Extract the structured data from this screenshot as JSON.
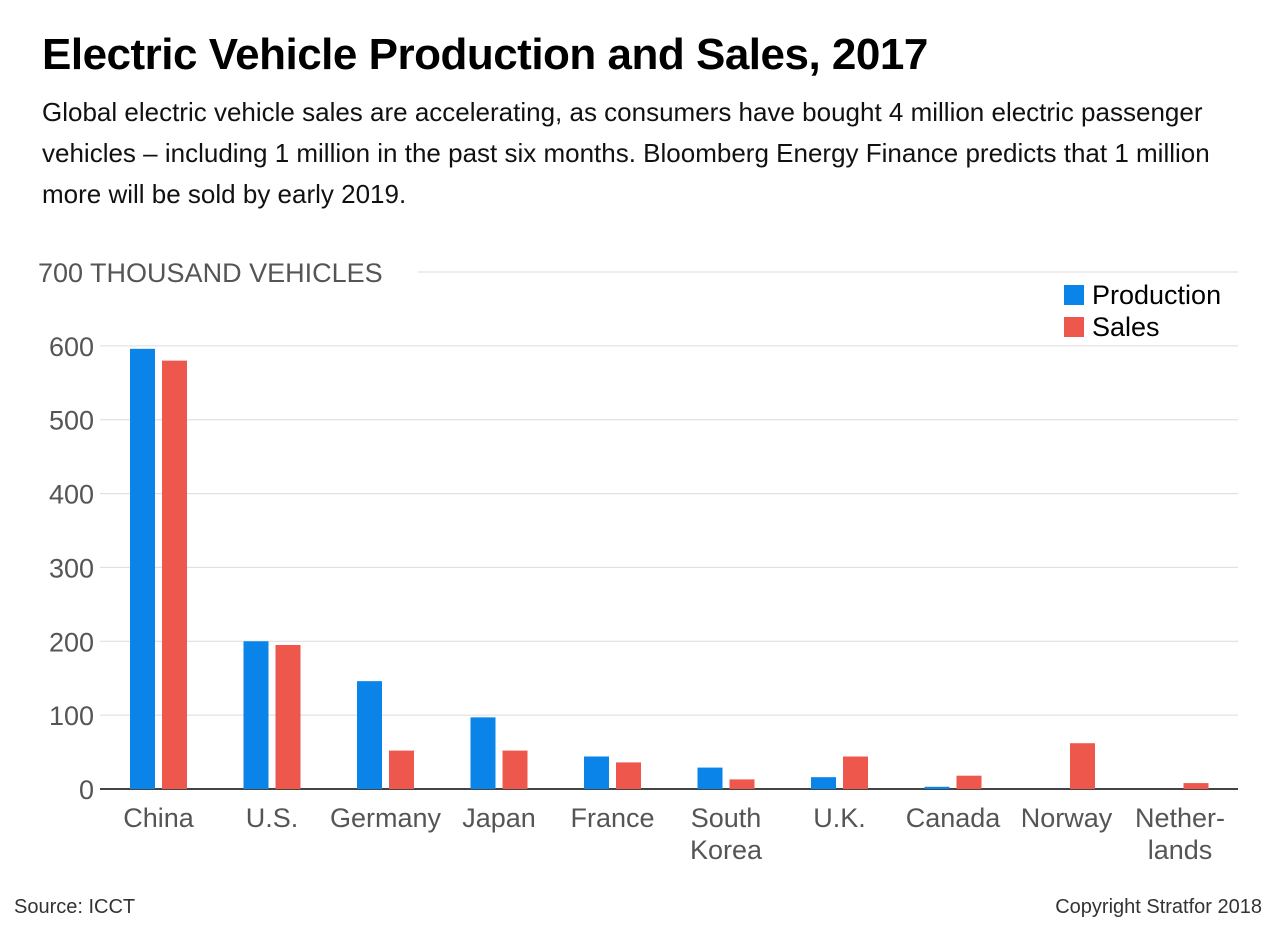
{
  "title": "Electric Vehicle Production and Sales, 2017",
  "subtitle": "Global electric vehicle sales are accelerating, as consumers have bought 4 million electric passenger vehicles – including 1 million in the past six months. Bloomberg Energy Finance predicts that 1 million more will be sold by early 2019.",
  "footer": {
    "source": "Source: ICCT",
    "copyright": "Copyright Stratfor 2018"
  },
  "chart_data": {
    "type": "bar",
    "ylabel": "700 THOUSAND VEHICLES",
    "ylim": [
      0,
      700
    ],
    "yticks": [
      "0",
      "100",
      "200",
      "300",
      "400",
      "500",
      "600"
    ],
    "grid": true,
    "legend_position": "top-right",
    "categories": [
      [
        "China"
      ],
      [
        "U.S."
      ],
      [
        "Germany"
      ],
      [
        "Japan"
      ],
      [
        "France"
      ],
      [
        "South",
        "Korea"
      ],
      [
        "U.K."
      ],
      [
        "Canada"
      ],
      [
        "Norway"
      ],
      [
        "Nether-",
        "lands"
      ]
    ],
    "series": [
      {
        "name": "Production",
        "color": "#0a84e8",
        "values": [
          596,
          200,
          146,
          97,
          44,
          29,
          16,
          3,
          0,
          0
        ]
      },
      {
        "name": "Sales",
        "color": "#ee574b",
        "values": [
          580,
          195,
          52,
          52,
          36,
          13,
          44,
          18,
          62,
          8
        ]
      }
    ]
  }
}
